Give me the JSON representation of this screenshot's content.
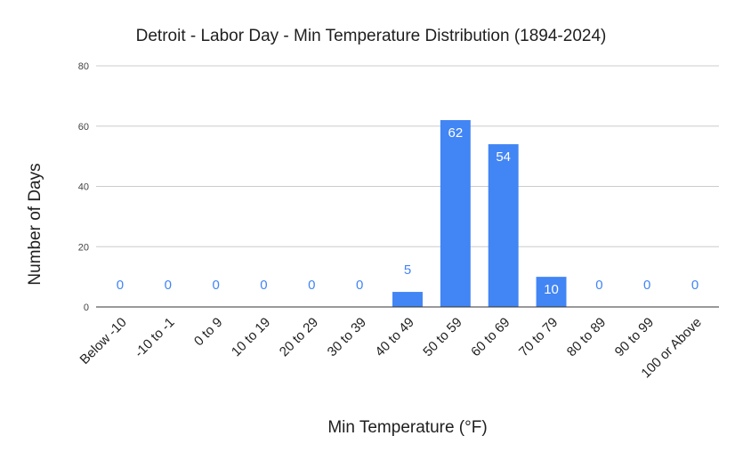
{
  "chart_data": {
    "type": "bar",
    "title": "Detroit - Labor Day - Min Temperature Distribution (1894-2024)",
    "xlabel": "Min Temperature (°F)",
    "ylabel": "Number of Days",
    "categories": [
      "Below -10",
      "-10 to -1",
      "0 to 9",
      "10 to 19",
      "20 to 29",
      "30 to 39",
      "40 to 49",
      "50 to 59",
      "60 to 69",
      "70 to 79",
      "80 to 89",
      "90 to 99",
      "100 or Above"
    ],
    "values": [
      0,
      0,
      0,
      0,
      0,
      0,
      5,
      62,
      54,
      10,
      0,
      0,
      0
    ],
    "ylim": [
      0,
      80
    ],
    "yticks": [
      0,
      20,
      40,
      60,
      80
    ],
    "grid": true,
    "legend": "none",
    "colors": {
      "bar": "#4285f4",
      "label_outside": "#4285f4",
      "label_inside": "#ffffff",
      "grid": "#cccccc",
      "axis": "#333333"
    }
  }
}
